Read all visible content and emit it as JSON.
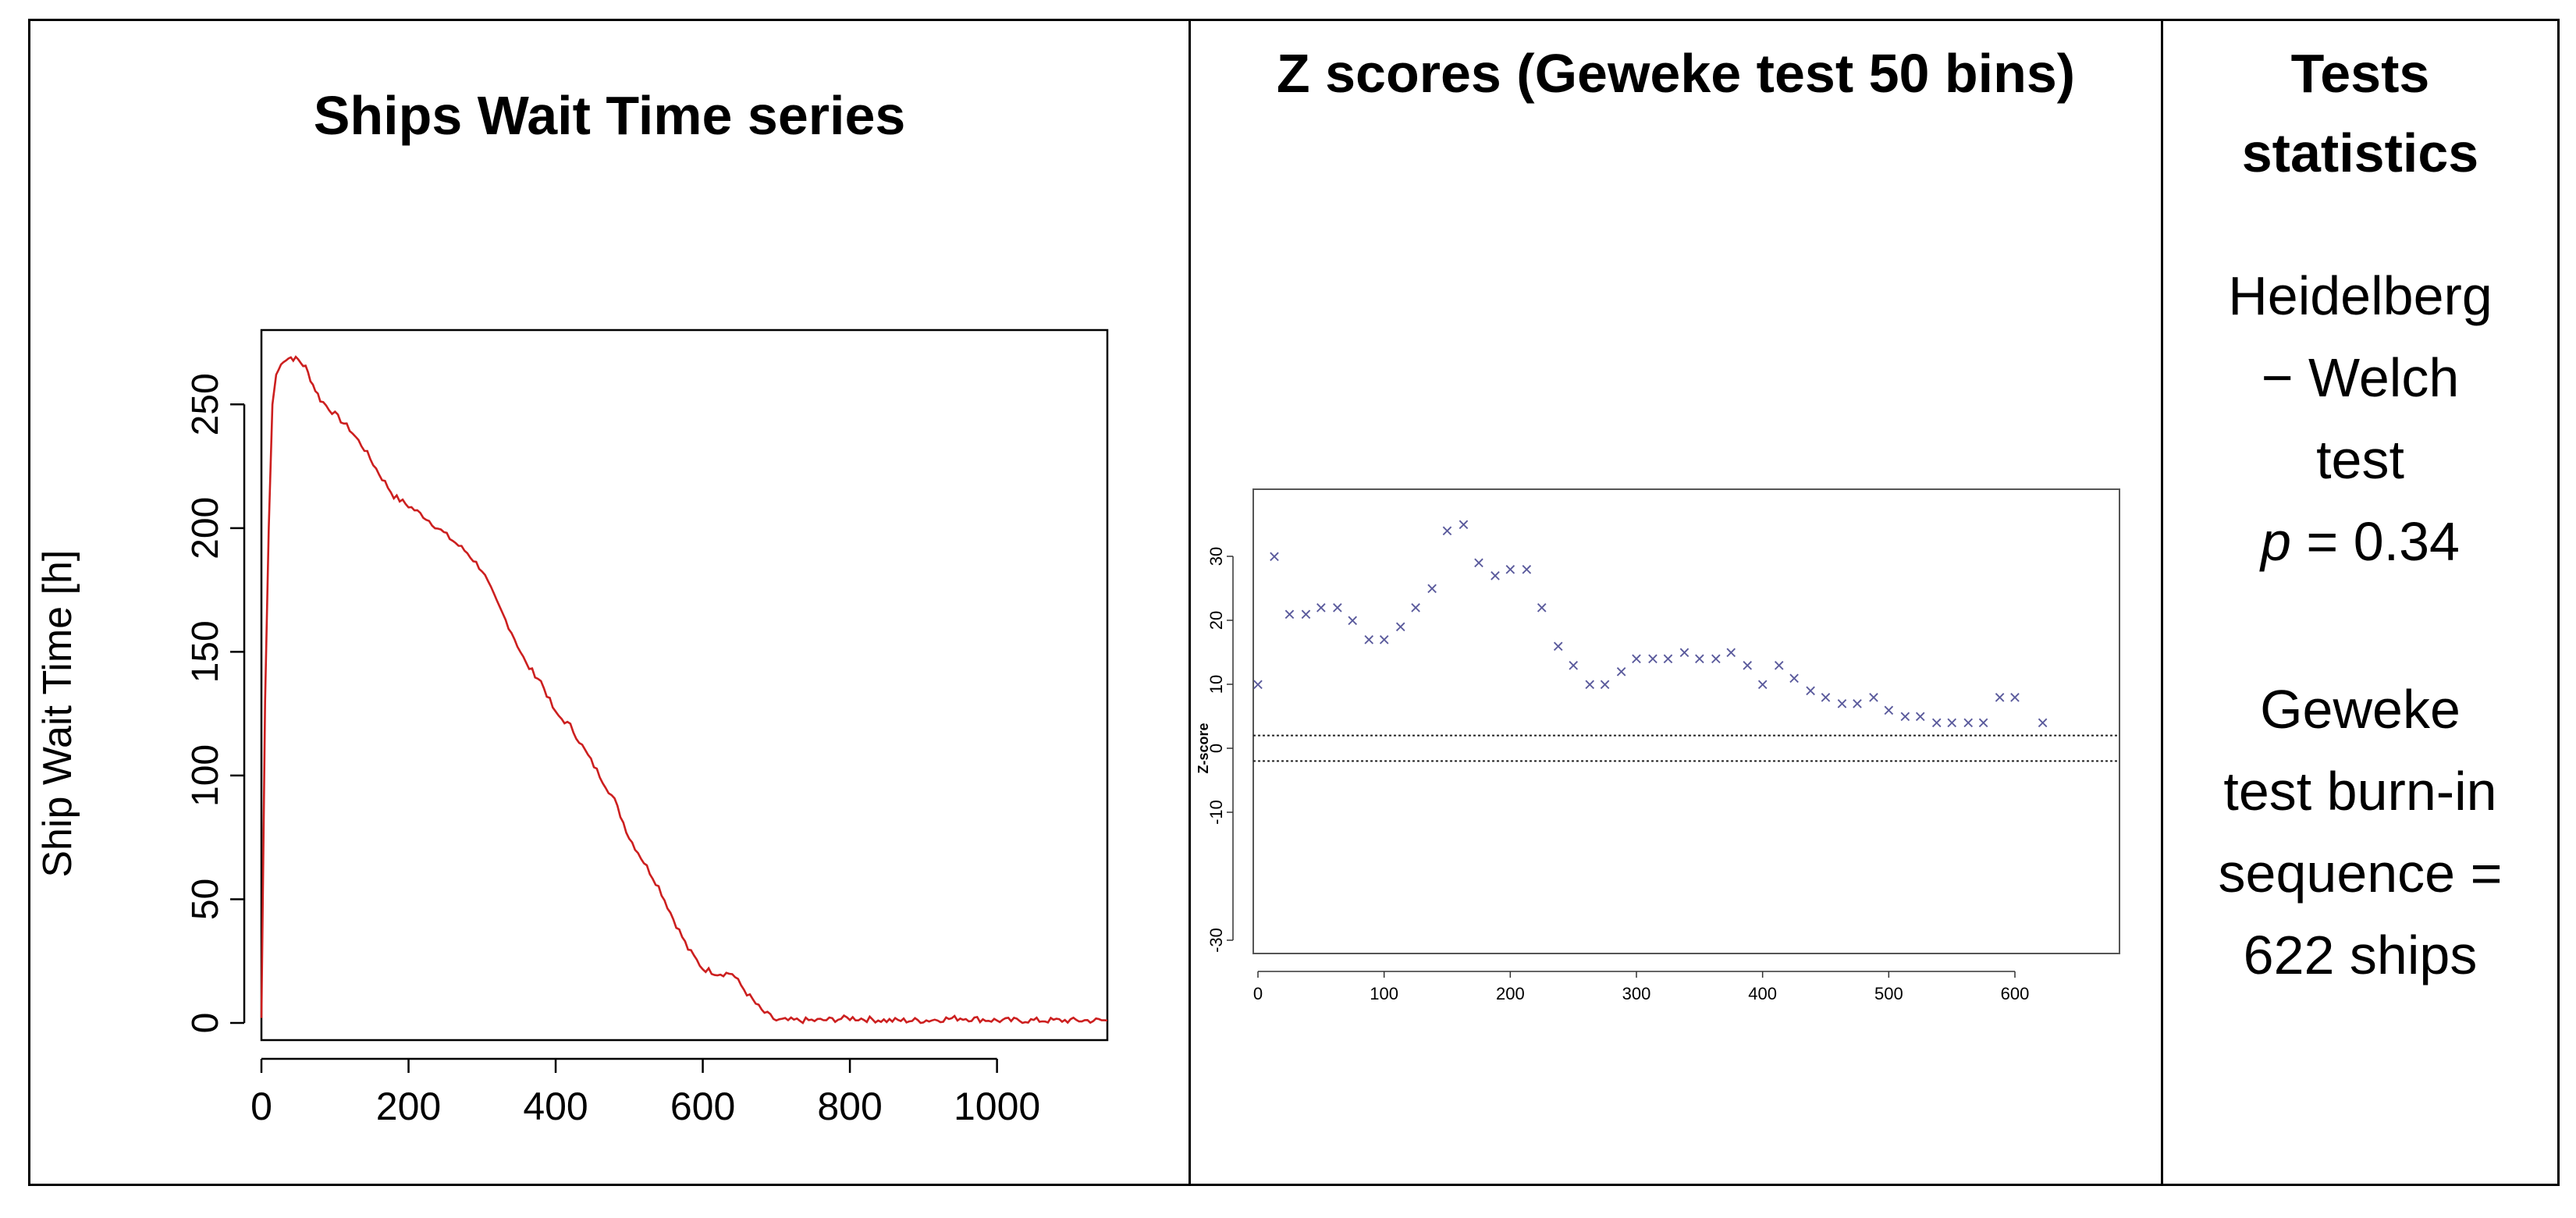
{
  "panels": {
    "left_title": "Ships Wait Time series",
    "middle_title": "Z scores (Geweke test 50 bins)",
    "right_title": "Tests statistics"
  },
  "stats": {
    "hw_line1": "Heidelberg",
    "hw_line2": "− Welch",
    "hw_line3": "test",
    "p_symbol": "p",
    "p_value": " = 0.34",
    "gw_line1": "Geweke",
    "gw_line2": "test burn-in",
    "gw_line3": "sequence =",
    "gw_line4": "622 ships"
  },
  "chart_data": [
    {
      "type": "line",
      "title": "",
      "xlabel": "",
      "ylabel": "Ship Wait Time [h]",
      "xlim": [
        0,
        1150
      ],
      "ylim": [
        0,
        275
      ],
      "xticks": [
        0,
        200,
        400,
        600,
        800,
        1000
      ],
      "yticks": [
        0,
        50,
        100,
        150,
        200,
        250
      ],
      "grid": false,
      "color": "#cc1f1f",
      "series": [
        {
          "x": [
            0,
            5,
            10,
            15,
            20,
            30,
            40,
            50,
            60,
            70,
            80,
            100,
            120,
            140,
            160,
            180,
            200,
            220,
            240,
            260,
            280,
            300,
            320,
            340,
            360,
            380,
            400,
            420,
            440,
            460,
            480,
            500,
            520,
            540,
            560,
            580,
            600,
            620,
            640,
            660,
            680,
            700,
            720,
            760,
            800,
            850,
            900,
            950,
            1000,
            1050,
            1100,
            1150
          ],
          "values": [
            2,
            130,
            200,
            250,
            262,
            268,
            269,
            268,
            265,
            258,
            252,
            246,
            240,
            232,
            222,
            213,
            209,
            205,
            200,
            195,
            190,
            183,
            170,
            158,
            145,
            138,
            125,
            120,
            110,
            100,
            90,
            75,
            65,
            55,
            42,
            30,
            22,
            20,
            20,
            12,
            5,
            1,
            1,
            1,
            2,
            1,
            1,
            2,
            1,
            1,
            1,
            1
          ]
        }
      ]
    },
    {
      "type": "scatter",
      "title": "",
      "xlabel": "",
      "ylabel": "Z-score",
      "xlim": [
        0,
        650
      ],
      "ylim": [
        -40,
        40
      ],
      "xticks": [
        0,
        100,
        200,
        300,
        400,
        500,
        600
      ],
      "yticks": [
        -30,
        -10,
        0,
        10,
        20,
        30
      ],
      "reference_lines": [
        2,
        -2
      ],
      "marker": "x",
      "color": "#5a5a9c",
      "series": [
        {
          "x": [
            0,
            13,
            25,
            38,
            50,
            63,
            75,
            88,
            100,
            113,
            125,
            138,
            150,
            163,
            175,
            188,
            200,
            213,
            225,
            238,
            250,
            263,
            275,
            288,
            300,
            313,
            325,
            338,
            350,
            363,
            375,
            388,
            400,
            413,
            425,
            438,
            450,
            463,
            475,
            488,
            500,
            513,
            525,
            538,
            550,
            563,
            575,
            588,
            600,
            622
          ],
          "values": [
            10,
            30,
            21,
            21,
            22,
            22,
            20,
            17,
            17,
            19,
            22,
            25,
            34,
            35,
            29,
            27,
            28,
            28,
            22,
            16,
            13,
            10,
            10,
            12,
            14,
            14,
            14,
            15,
            14,
            14,
            15,
            13,
            10,
            13,
            11,
            9,
            8,
            7,
            7,
            8,
            6,
            5,
            5,
            4,
            4,
            4,
            4,
            8,
            8,
            4
          ]
        }
      ]
    }
  ]
}
